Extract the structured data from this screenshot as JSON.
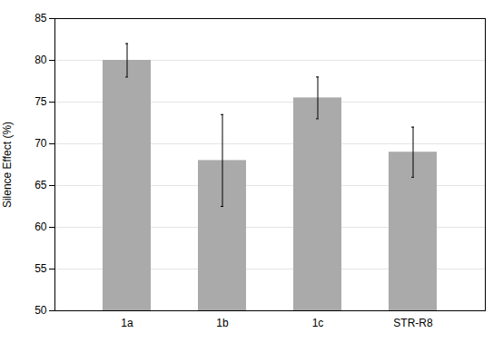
{
  "chart_data": {
    "type": "bar",
    "categories": [
      "1a",
      "1b",
      "1c",
      "STR-R8"
    ],
    "values": [
      80.0,
      68.0,
      75.5,
      69.0
    ],
    "errors": [
      2.0,
      5.5,
      2.5,
      3.0
    ],
    "color": "#aaaaaa",
    "ylabel": "Silence Effect (%)",
    "ylim": [
      50,
      85
    ],
    "yticks": [
      50,
      55,
      60,
      65,
      70,
      75,
      80,
      85
    ],
    "grid": true
  }
}
